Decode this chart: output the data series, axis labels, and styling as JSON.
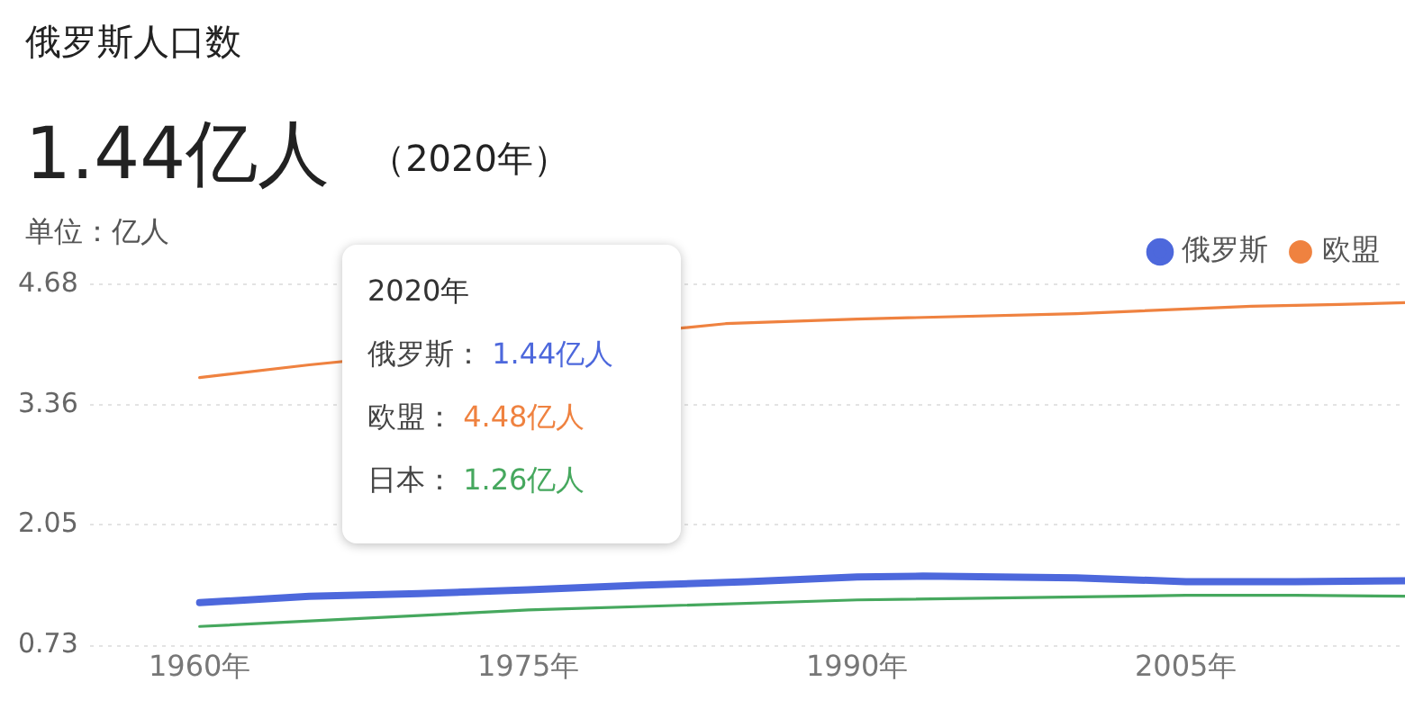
{
  "chart_data": {
    "type": "line",
    "title": "俄罗斯人口数",
    "subtitle": "1.44亿人",
    "ylabel": "单位：亿人",
    "annotations": [
      "（2020年）",
      "2020年",
      "俄罗斯： 1.44亿人",
      "欧盟： 4.48亿人",
      "日本： 1.26亿人"
    ],
    "xlim": [
      1955,
      2015
    ],
    "xticks": [
      {
        "value": 1960,
        "label": "1960年"
      },
      {
        "value": 1975,
        "label": "1975年"
      },
      {
        "value": 1990,
        "label": "1990年"
      },
      {
        "value": 2005,
        "label": "2005年"
      }
    ],
    "ylim": [
      0.73,
      4.68
    ],
    "yticks": [
      0.73,
      2.05,
      3.36,
      4.68
    ],
    "grid": "y",
    "legend": "top right",
    "marker": "none",
    "line_style": "solid",
    "series": [
      {
        "name": "俄罗斯",
        "color": "#4d68dc",
        "x": [
          1960,
          1965,
          1970,
          1975,
          1980,
          1985,
          1990,
          1993,
          2000,
          2005,
          2010,
          2015
        ],
        "values": [
          1.2,
          1.27,
          1.3,
          1.34,
          1.39,
          1.43,
          1.48,
          1.49,
          1.47,
          1.43,
          1.43,
          1.44
        ]
      },
      {
        "name": "欧盟",
        "color": "#ef8240",
        "x": [
          1960,
          1965,
          1984,
          1990,
          2000,
          2008,
          2012,
          2015
        ],
        "values": [
          3.66,
          3.8,
          4.25,
          4.3,
          4.36,
          4.44,
          4.46,
          4.48
        ]
      },
      {
        "color": "#46a85e",
        "x": [
          1960,
          1975,
          1990,
          2005,
          2010,
          2015
        ],
        "values": [
          0.94,
          1.12,
          1.23,
          1.28,
          1.28,
          1.27
        ]
      }
    ]
  }
}
